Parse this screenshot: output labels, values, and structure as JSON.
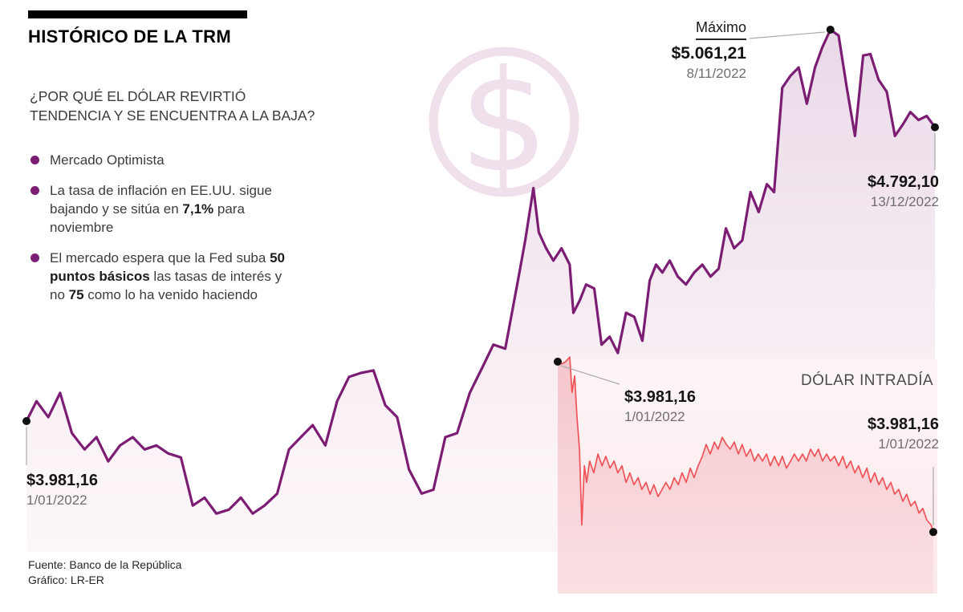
{
  "header": {
    "title": "HISTÓRICO DE LA TRM",
    "question_lines": [
      "¿POR QUÉ EL DÓLAR REVIRTIÓ",
      "TENDENCIA Y SE ENCUENTRA A LA BAJA?"
    ]
  },
  "bullets": [
    {
      "segments": [
        {
          "text": "Mercado Optimista",
          "bold": false
        }
      ]
    },
    {
      "segments": [
        {
          "text": "La tasa de inflación en EE.UU. sigue bajando y se sitúa en ",
          "bold": false
        },
        {
          "text": "7,1%",
          "bold": true
        },
        {
          "text": " para noviembre",
          "bold": false
        }
      ]
    },
    {
      "segments": [
        {
          "text": "El mercado espera que la Fed suba ",
          "bold": false
        },
        {
          "text": "50 puntos básicos",
          "bold": true
        },
        {
          "text": " las tasas de interés y no ",
          "bold": false
        },
        {
          "text": "75",
          "bold": true
        },
        {
          "text": " como lo ha venido haciendo",
          "bold": false
        }
      ]
    }
  ],
  "annotations": {
    "start": {
      "value": "$3.981,16",
      "date": "1/01/2022"
    },
    "max": {
      "label": "Máximo",
      "value": "$5.061,21",
      "date": "8/11/2022"
    },
    "end": {
      "value": "$4.792,10",
      "date": "13/12/2022"
    },
    "intraday_start": {
      "value": "$3.981,16",
      "date": "1/01/2022"
    },
    "intraday_title": "DÓLAR INTRADÍA",
    "intraday_end": {
      "value": "$3.981,16",
      "date": "1/01/2022"
    }
  },
  "watermark": {
    "symbol": "$"
  },
  "footer": {
    "source": "Fuente: Banco de la República",
    "credit": "Gráfico: LR-ER"
  },
  "colors": {
    "accent_purple": "#7b1e73",
    "trm_line": "#7b1e73",
    "intraday_line": "#ef5358",
    "dot_black": "#101010",
    "connector_gray": "#a9a9a9",
    "date_gray": "#6e6e6e"
  },
  "chart_data": [
    {
      "type": "area",
      "name": "trm_historico",
      "title": "HISTÓRICO DE LA TRM",
      "x_range": [
        "1/01/2022",
        "13/12/2022"
      ],
      "ylim": [
        3650,
        5100
      ],
      "grid": false,
      "legend": false,
      "key_points": {
        "start": 3981.16,
        "max": 5061.21,
        "max_date": "8/11/2022",
        "end": 4792.1,
        "end_date": "13/12/2022"
      },
      "series": [
        {
          "name": "TRM",
          "x": [
            0,
            0.011,
            0.024,
            0.037,
            0.05,
            0.064,
            0.077,
            0.09,
            0.103,
            0.117,
            0.13,
            0.143,
            0.156,
            0.17,
            0.183,
            0.196,
            0.209,
            0.223,
            0.236,
            0.249,
            0.262,
            0.276,
            0.289,
            0.302,
            0.315,
            0.329,
            0.342,
            0.355,
            0.368,
            0.382,
            0.395,
            0.408,
            0.421,
            0.435,
            0.448,
            0.461,
            0.474,
            0.488,
            0.501,
            0.514,
            0.527,
            0.541,
            0.549,
            0.558,
            0.564,
            0.572,
            0.58,
            0.589,
            0.598,
            0.602,
            0.609,
            0.616,
            0.625,
            0.633,
            0.642,
            0.651,
            0.66,
            0.669,
            0.678,
            0.686,
            0.693,
            0.7,
            0.708,
            0.717,
            0.726,
            0.735,
            0.744,
            0.753,
            0.762,
            0.77,
            0.779,
            0.788,
            0.797,
            0.806,
            0.815,
            0.823,
            0.832,
            0.841,
            0.85,
            0.859,
            0.868,
            0.876,
            0.885,
            0.894,
            0.903,
            0.912,
            0.921,
            0.929,
            0.938,
            0.947,
            0.956,
            0.965,
            0.973,
            0.982,
            0.991,
            1
          ],
          "values": [
            3981.16,
            4036,
            3992,
            4059,
            3948,
            3903,
            3937,
            3870,
            3914,
            3937,
            3903,
            3914,
            3892,
            3881,
            3748,
            3770,
            3726,
            3737,
            3770,
            3726,
            3748,
            3781,
            3903,
            3937,
            3970,
            3914,
            4036,
            4103,
            4114,
            4121,
            4025,
            3992,
            3848,
            3781,
            3792,
            3937,
            3948,
            4059,
            4125,
            4192,
            4181,
            4369,
            4480,
            4624,
            4502,
            4458,
            4424,
            4458,
            4413,
            4280,
            4314,
            4358,
            4347,
            4192,
            4214,
            4169,
            4280,
            4269,
            4203,
            4369,
            4413,
            4391,
            4424,
            4380,
            4358,
            4391,
            4413,
            4380,
            4402,
            4513,
            4458,
            4480,
            4613,
            4558,
            4635,
            4613,
            4901,
            4934,
            4957,
            4857,
            4957,
            5012,
            5061.21,
            5045,
            4901,
            4768,
            4990,
            4994,
            4923,
            4890,
            4768,
            4801,
            4834,
            4812,
            4823,
            4792.1
          ]
        }
      ]
    },
    {
      "type": "area",
      "name": "dolar_intradia",
      "title": "DÓLAR INTRADÍA",
      "ylim": [
        0,
        100
      ],
      "value_unit": "índice 0-100 (sin eje visible en la imagen)",
      "grid": false,
      "legend": false,
      "key_points": {
        "label_value": 3981.16,
        "label_date": "1/01/2022"
      },
      "series": [
        {
          "name": "Intradía",
          "x": [
            0,
            0.011,
            0.021,
            0.032,
            0.038,
            0.045,
            0.051,
            0.058,
            0.064,
            0.071,
            0.077,
            0.085,
            0.096,
            0.107,
            0.118,
            0.128,
            0.139,
            0.15,
            0.16,
            0.171,
            0.182,
            0.192,
            0.203,
            0.214,
            0.224,
            0.235,
            0.246,
            0.256,
            0.267,
            0.278,
            0.288,
            0.299,
            0.31,
            0.321,
            0.331,
            0.342,
            0.353,
            0.363,
            0.374,
            0.385,
            0.395,
            0.406,
            0.417,
            0.427,
            0.438,
            0.449,
            0.459,
            0.47,
            0.481,
            0.491,
            0.502,
            0.513,
            0.524,
            0.534,
            0.545,
            0.556,
            0.566,
            0.577,
            0.588,
            0.598,
            0.609,
            0.62,
            0.63,
            0.641,
            0.652,
            0.662,
            0.673,
            0.684,
            0.694,
            0.705,
            0.716,
            0.726,
            0.737,
            0.748,
            0.759,
            0.769,
            0.78,
            0.791,
            0.801,
            0.812,
            0.823,
            0.833,
            0.844,
            0.855,
            0.865,
            0.876,
            0.887,
            0.897,
            0.908,
            0.919,
            0.929,
            0.94,
            0.951,
            0.962,
            0.972,
            0.983,
            0.994,
            1
          ],
          "values": [
            98,
            97,
            98,
            100,
            85,
            92,
            75,
            61,
            29,
            54,
            47,
            56,
            51,
            59,
            54,
            58,
            53,
            56,
            51,
            54,
            47,
            51,
            46,
            49,
            44,
            47,
            42,
            46,
            41,
            44,
            47,
            44,
            49,
            46,
            51,
            47,
            53,
            49,
            54,
            58,
            63,
            59,
            64,
            61,
            66,
            63,
            61,
            64,
            59,
            63,
            58,
            61,
            56,
            59,
            56,
            59,
            54,
            58,
            54,
            58,
            53,
            56,
            59,
            56,
            59,
            56,
            61,
            58,
            61,
            56,
            59,
            56,
            58,
            54,
            58,
            53,
            56,
            51,
            54,
            49,
            53,
            47,
            51,
            46,
            49,
            44,
            47,
            42,
            44,
            39,
            42,
            37,
            39,
            34,
            36,
            31,
            29,
            26
          ]
        }
      ]
    }
  ]
}
